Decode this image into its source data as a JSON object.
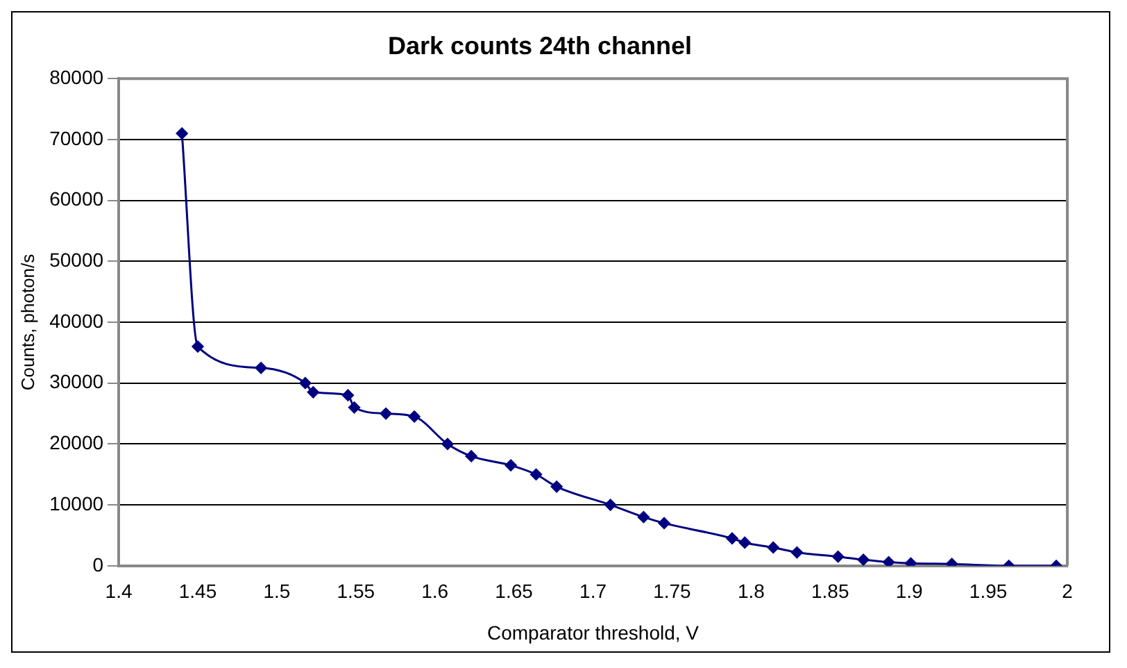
{
  "chart_data": {
    "type": "line",
    "title": "Dark counts 24th channel",
    "xlabel": "Comparator threshold, V",
    "ylabel": "Counts, photon/s",
    "x": [
      1.44,
      1.45,
      1.49,
      1.518,
      1.523,
      1.545,
      1.549,
      1.569,
      1.587,
      1.608,
      1.623,
      1.648,
      1.664,
      1.677,
      1.711,
      1.732,
      1.745,
      1.788,
      1.796,
      1.814,
      1.829,
      1.855,
      1.871,
      1.887,
      1.901,
      1.927,
      1.963,
      1.993
    ],
    "series": [
      {
        "color": "#000080",
        "values": [
          71000,
          36000,
          32500,
          30000,
          28500,
          28000,
          26000,
          25000,
          24500,
          20000,
          18000,
          16500,
          15000,
          13000,
          10000,
          8000,
          7000,
          4500,
          3800,
          3000,
          2200,
          1500,
          1000,
          600,
          400,
          300,
          0,
          0
        ]
      }
    ],
    "xlim": [
      1.4,
      2
    ],
    "xticks": [
      1.4,
      1.45,
      1.5,
      1.55,
      1.6,
      1.65,
      1.7,
      1.75,
      1.8,
      1.85,
      1.9,
      1.95,
      2
    ],
    "ylim": [
      0,
      80000
    ],
    "yticks": [
      0,
      10000,
      20000,
      30000,
      40000,
      50000,
      60000,
      70000,
      80000
    ],
    "grid": "y",
    "legend": false,
    "marker": "diamond",
    "line_style": "solid"
  }
}
